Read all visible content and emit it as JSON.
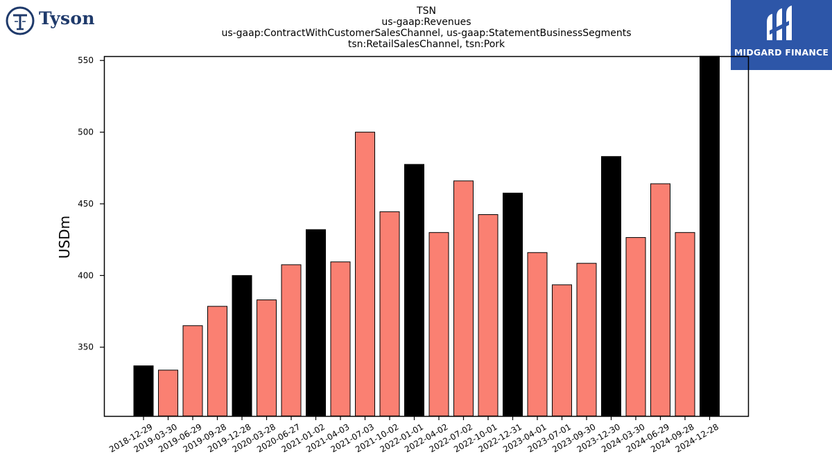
{
  "brand": {
    "left_logo_name": "Tyson",
    "right_logo_name": "MIDGARD FINANCE",
    "right_logo_bg": "#2d56a8",
    "left_logo_color": "#1f3a6b"
  },
  "chart_data": {
    "type": "bar",
    "title_lines": [
      "TSN",
      "us-gaap:Revenues",
      "us-gaap:ContractWithCustomerSalesChannel, us-gaap:StatementBusinessSegments",
      "tsn:RetailSalesChannel, tsn:Pork"
    ],
    "xlabel": "",
    "ylabel": "USDm",
    "ylim": [
      302,
      553
    ],
    "yticks": [
      350,
      400,
      450,
      500,
      550
    ],
    "categories": [
      "2018-12-29",
      "2019-03-30",
      "2019-06-29",
      "2019-09-28",
      "2019-12-28",
      "2020-03-28",
      "2020-06-27",
      "2021-01-02",
      "2021-04-03",
      "2021-07-03",
      "2021-10-02",
      "2022-01-01",
      "2022-04-02",
      "2022-07-02",
      "2022-10-01",
      "2022-12-31",
      "2023-04-01",
      "2023-07-01",
      "2023-09-30",
      "2023-12-30",
      "2024-03-30",
      "2024-06-29",
      "2024-09-28",
      "2024-12-28"
    ],
    "values": [
      337,
      334,
      365,
      378.5,
      400,
      383,
      407.5,
      432,
      409.5,
      500,
      444.5,
      477.5,
      430,
      466,
      442.5,
      457.5,
      416,
      393.5,
      408.5,
      483,
      426.5,
      464,
      430,
      553
    ],
    "bar_colors": [
      "#000000",
      "#fa8072",
      "#fa8072",
      "#fa8072",
      "#000000",
      "#fa8072",
      "#fa8072",
      "#000000",
      "#fa8072",
      "#fa8072",
      "#fa8072",
      "#000000",
      "#fa8072",
      "#fa8072",
      "#fa8072",
      "#000000",
      "#fa8072",
      "#fa8072",
      "#fa8072",
      "#000000",
      "#fa8072",
      "#fa8072",
      "#fa8072",
      "#000000"
    ],
    "colors": {
      "annual": "#000000",
      "quarterly": "#fa8072",
      "edge": "#000000"
    },
    "grid": false
  }
}
